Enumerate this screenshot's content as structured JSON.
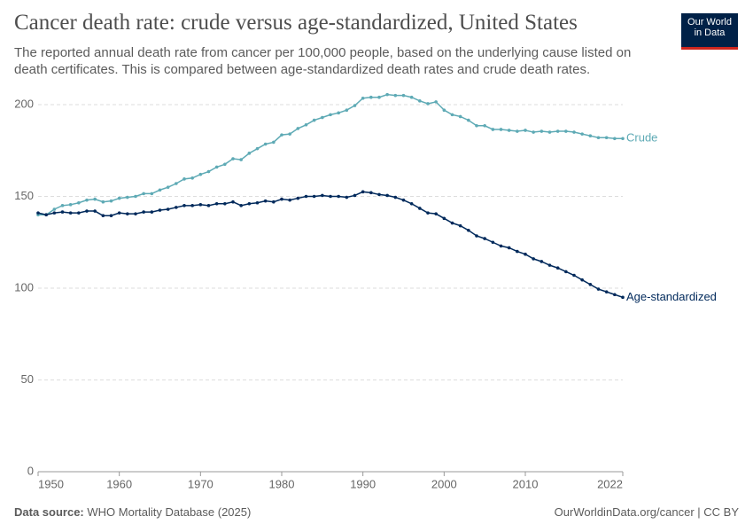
{
  "chart_data": {
    "type": "line",
    "title": "Cancer death rate: crude versus age-standardized, United States",
    "subtitle": "The reported annual death rate from cancer per 100,000 people, based on the underlying cause listed on death certificates. This is compared between age-standardized death rates and crude death rates.",
    "x": [
      1950,
      1951,
      1952,
      1953,
      1954,
      1955,
      1956,
      1957,
      1958,
      1959,
      1960,
      1961,
      1962,
      1963,
      1964,
      1965,
      1966,
      1967,
      1968,
      1969,
      1970,
      1971,
      1972,
      1973,
      1974,
      1975,
      1976,
      1977,
      1978,
      1979,
      1980,
      1981,
      1982,
      1983,
      1984,
      1985,
      1986,
      1987,
      1988,
      1989,
      1990,
      1991,
      1992,
      1993,
      1994,
      1995,
      1996,
      1997,
      1998,
      1999,
      2000,
      2001,
      2002,
      2003,
      2004,
      2005,
      2006,
      2007,
      2008,
      2009,
      2010,
      2011,
      2012,
      2013,
      2014,
      2015,
      2016,
      2017,
      2018,
      2019,
      2020,
      2021,
      2022
    ],
    "series": [
      {
        "name": "Crude",
        "color": "#5eaab5",
        "values": [
          140,
          140,
          143,
          145,
          145.5,
          146.5,
          148,
          148.5,
          147,
          147.5,
          149,
          149.5,
          150,
          151.5,
          151.5,
          153.5,
          155,
          157,
          159.5,
          160,
          162,
          163.5,
          166,
          167.5,
          170.5,
          170,
          173.5,
          176,
          178.5,
          179.5,
          183.5,
          184,
          187,
          189,
          191.5,
          193,
          194.5,
          195.5,
          197,
          199.5,
          203.5,
          204,
          204,
          205.5,
          205,
          205,
          204,
          202,
          200.5,
          201.5,
          197,
          194.5,
          193.5,
          191.5,
          188.5,
          188.5,
          186.5,
          186.5,
          186,
          185.5,
          186,
          185,
          185.5,
          185,
          185.5,
          185.5,
          185,
          184,
          183,
          182,
          182,
          181.5,
          181.5
        ]
      },
      {
        "name": "Age-standardized",
        "color": "#00295b",
        "values": [
          141,
          140,
          141,
          141.5,
          141,
          141,
          142,
          142,
          139.5,
          139.5,
          141,
          140.5,
          140.5,
          141.5,
          141.5,
          142.5,
          143,
          144,
          145,
          145,
          145.5,
          145,
          146,
          146,
          147,
          145,
          146,
          146.5,
          147.5,
          147,
          148.5,
          148,
          149,
          150,
          150,
          150.5,
          150,
          150,
          149.5,
          150.5,
          152.5,
          152,
          151,
          150.5,
          149.5,
          148,
          146,
          143.5,
          141,
          140.5,
          138,
          135.5,
          134,
          131.5,
          128.5,
          127,
          125,
          123,
          122,
          120,
          118.5,
          116,
          114.5,
          112.5,
          111,
          109,
          107,
          104.5,
          102,
          99.5,
          98,
          96.5,
          95
        ]
      }
    ],
    "xlim": [
      1950,
      2022
    ],
    "xticks": [
      1950,
      1960,
      1970,
      1980,
      1990,
      2000,
      2010,
      2022
    ],
    "ylim": [
      0,
      200
    ],
    "yticks": [
      0,
      50,
      100,
      150,
      200
    ],
    "grid": true
  },
  "logo": {
    "line1": "Our World",
    "line2": "in Data"
  },
  "footer": {
    "source_label": "Data source:",
    "source": "WHO Mortality Database (2025)",
    "credit": "OurWorldinData.org/cancer | CC BY"
  }
}
